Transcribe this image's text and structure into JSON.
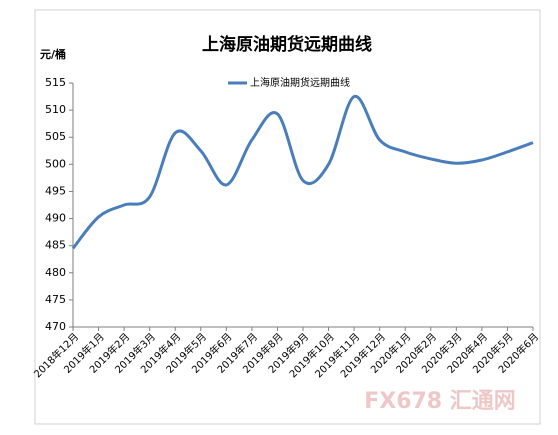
{
  "chart_data": {
    "type": "line",
    "title": "上海原油期货远期曲线",
    "y_label": "元/桶",
    "categories": [
      "2018年12月",
      "2019年1月",
      "2019年2月",
      "2019年3月",
      "2019年4月",
      "2019年5月",
      "2019年6月",
      "2019年7月",
      "2019年8月",
      "2019年9月",
      "2019年10月",
      "2019年11月",
      "2019年12月",
      "2020年1月",
      "2020年2月",
      "2020年3月",
      "2020年4月",
      "2020年5月",
      "2020年6月"
    ],
    "series": [
      {
        "name": "上海原油期货远期曲线",
        "color": "#4a7ebb",
        "values": [
          484.5,
          490.3,
          492.5,
          494,
          505.8,
          502.5,
          496.2,
          504.5,
          509.3,
          497,
          500,
          512.5,
          504.5,
          502.3,
          501,
          500.2,
          500.8,
          502.3,
          504
        ]
      }
    ],
    "ylim": [
      470,
      515
    ],
    "yticks": [
      470,
      475,
      480,
      485,
      490,
      495,
      500,
      505,
      510,
      515
    ],
    "grid": false,
    "watermark": "FX678 汇通网"
  }
}
